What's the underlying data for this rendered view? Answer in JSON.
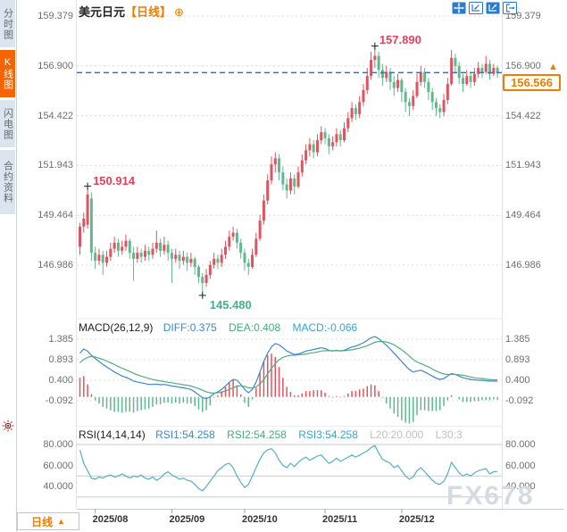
{
  "header": {
    "symbol": "美元日元",
    "period_bracket": "【日线】",
    "plus_icon_char": "⊕"
  },
  "sidebar": {
    "tabs": [
      {
        "label": "分时图",
        "active": false
      },
      {
        "label": "K线图",
        "active": true
      },
      {
        "label": "闪电图",
        "active": false
      },
      {
        "label": "合约资料",
        "active": false
      }
    ]
  },
  "axes": {
    "price_labels": [
      "159.379",
      "156.900",
      "154.422",
      "151.943",
      "149.464",
      "146.986"
    ],
    "macd_labels": [
      "1.385",
      "0.893",
      "0.400",
      "-0.092"
    ],
    "rsi_labels": [
      "80.000",
      "60.000",
      "40.000"
    ],
    "x_labels": [
      "2025/08",
      "2025/09",
      "2025/10",
      "2025/11",
      "2025/12"
    ]
  },
  "price_marker": {
    "value": "156.566",
    "arrow": "▲"
  },
  "annotations": {
    "high": {
      "value": "157.890"
    },
    "swing_high": {
      "value": "150.914"
    },
    "low": {
      "value": "145.480"
    }
  },
  "indicators": {
    "macd_header": {
      "name": "MACD(26,12,9)",
      "diff": "DIFF:0.375",
      "dea": "DEA:0.408",
      "macd": "MACD:-0.066"
    },
    "rsi_header": {
      "name": "RSI(14,14,14)",
      "rsi1": "RSI1:54.258",
      "rsi2": "RSI2:54.258",
      "rsi3": "RSI3:54.258",
      "l20": "L20:20.000",
      "l30": "L30:3"
    }
  },
  "period_button": {
    "label": "日线",
    "arrow": "▲"
  },
  "watermark": "FX678",
  "colors": {
    "up": "#e0535f",
    "down": "#5eb98e",
    "diff_line": "#3c86d2",
    "dea_line": "#53ab82",
    "rsi_line": "#55aecb",
    "accent_orange": "#f07d00",
    "price_line_blue": "#1e79d2",
    "annotation_red": "#e8405a",
    "annotation_green": "#3eb48e",
    "grid": "#dcdcdc",
    "rsi_grid": "#c6cad0",
    "axis_text": "#6e6e6e"
  },
  "chart_data": {
    "type": "candlestick",
    "title": "美元日元 日线 (USD/JPY daily)",
    "price_axis_ticks": [
      159.379,
      156.9,
      154.422,
      151.943,
      149.464,
      146.986
    ],
    "current_price": 156.566,
    "annotated_high": 157.89,
    "annotated_low": 145.48,
    "annotated_swing_high": 150.914,
    "annotation_anchor_indices": {
      "swing_high": 2,
      "low": 32,
      "high": 77
    },
    "x_tick_indices": [
      4,
      24,
      43,
      64,
      84
    ],
    "rsi_guide_levels": [
      80,
      50,
      30
    ],
    "macd_axis_ticks": [
      1.385,
      0.893,
      0.4,
      -0.092
    ],
    "rsi_axis_ticks": [
      80.0,
      60.0,
      40.0
    ],
    "candles": [
      [
        147.9,
        149.1,
        147.5,
        148.9
      ],
      [
        148.9,
        149.6,
        148.6,
        149.3
      ],
      [
        149.0,
        150.914,
        148.8,
        150.5
      ],
      [
        150.3,
        150.6,
        147.2,
        147.6
      ],
      [
        147.6,
        147.9,
        146.8,
        147.2
      ],
      [
        147.2,
        147.8,
        147.0,
        147.5
      ],
      [
        147.5,
        147.7,
        146.5,
        147.1
      ],
      [
        147.1,
        147.7,
        146.9,
        147.4
      ],
      [
        147.4,
        148.1,
        147.2,
        147.8
      ],
      [
        147.8,
        148.4,
        147.6,
        148.1
      ],
      [
        148.1,
        148.3,
        147.4,
        147.7
      ],
      [
        147.7,
        148.2,
        147.5,
        147.9
      ],
      [
        147.9,
        148.5,
        147.7,
        148.2
      ],
      [
        148.2,
        148.3,
        147.3,
        147.6
      ],
      [
        147.6,
        147.9,
        146.2,
        147.3
      ],
      [
        147.3,
        147.9,
        147.1,
        147.6
      ],
      [
        147.6,
        147.8,
        147.1,
        147.4
      ],
      [
        147.4,
        148.0,
        147.2,
        147.7
      ],
      [
        147.7,
        147.9,
        147.2,
        147.5
      ],
      [
        147.5,
        148.1,
        147.3,
        147.8
      ],
      [
        147.8,
        148.7,
        147.6,
        148.1
      ],
      [
        148.1,
        148.3,
        147.4,
        147.7
      ],
      [
        147.7,
        148.4,
        147.5,
        148.0
      ],
      [
        148.0,
        148.2,
        147.2,
        147.6
      ],
      [
        147.6,
        147.8,
        146.1,
        147.3
      ],
      [
        147.3,
        147.8,
        147.1,
        147.5
      ],
      [
        147.5,
        147.7,
        146.8,
        147.2
      ],
      [
        147.2,
        147.7,
        147.0,
        147.4
      ],
      [
        147.4,
        147.6,
        146.7,
        147.1
      ],
      [
        147.1,
        147.6,
        146.9,
        147.3
      ],
      [
        147.3,
        147.4,
        146.5,
        146.9
      ],
      [
        146.9,
        147.0,
        146.1,
        146.4
      ],
      [
        146.4,
        146.6,
        145.48,
        146.1
      ],
      [
        146.1,
        146.8,
        145.9,
        146.5
      ],
      [
        146.5,
        147.2,
        146.3,
        147.0
      ],
      [
        147.0,
        147.6,
        146.8,
        147.3
      ],
      [
        147.3,
        147.5,
        146.8,
        147.1
      ],
      [
        147.1,
        147.8,
        146.9,
        147.5
      ],
      [
        147.5,
        148.2,
        147.3,
        147.9
      ],
      [
        147.9,
        148.7,
        147.7,
        148.4
      ],
      [
        148.4,
        148.9,
        148.2,
        148.6
      ],
      [
        148.6,
        148.8,
        147.8,
        148.1
      ],
      [
        148.1,
        148.3,
        147.3,
        147.6
      ],
      [
        147.6,
        147.8,
        146.7,
        147.1
      ],
      [
        147.1,
        147.3,
        146.5,
        146.9
      ],
      [
        146.9,
        147.8,
        146.8,
        147.5
      ],
      [
        147.5,
        148.6,
        147.4,
        148.3
      ],
      [
        148.3,
        149.5,
        148.2,
        149.2
      ],
      [
        149.2,
        150.5,
        149.0,
        150.2
      ],
      [
        150.2,
        151.5,
        150.0,
        151.2
      ],
      [
        151.2,
        152.4,
        151.0,
        152.0
      ],
      [
        152.0,
        152.6,
        151.6,
        152.3
      ],
      [
        152.3,
        152.5,
        151.2,
        151.6
      ],
      [
        151.6,
        151.9,
        150.7,
        151.0
      ],
      [
        151.0,
        151.3,
        150.3,
        150.7
      ],
      [
        150.7,
        151.6,
        150.5,
        151.3
      ],
      [
        151.3,
        151.5,
        150.5,
        150.9
      ],
      [
        150.9,
        151.9,
        150.8,
        151.6
      ],
      [
        151.6,
        152.5,
        151.4,
        152.2
      ],
      [
        152.2,
        153.0,
        152.0,
        152.7
      ],
      [
        152.7,
        153.3,
        152.4,
        153.0
      ],
      [
        153.0,
        153.2,
        152.3,
        152.6
      ],
      [
        152.6,
        153.5,
        152.4,
        153.2
      ],
      [
        153.2,
        153.9,
        153.0,
        153.6
      ],
      [
        153.6,
        153.8,
        153.0,
        153.3
      ],
      [
        153.3,
        153.5,
        152.5,
        152.9
      ],
      [
        152.9,
        153.4,
        152.7,
        153.1
      ],
      [
        153.1,
        153.8,
        152.9,
        153.5
      ],
      [
        153.5,
        153.7,
        152.9,
        153.2
      ],
      [
        153.2,
        154.1,
        153.1,
        153.8
      ],
      [
        153.8,
        154.6,
        153.6,
        154.3
      ],
      [
        154.3,
        155.1,
        154.1,
        154.8
      ],
      [
        154.8,
        155.0,
        154.2,
        154.5
      ],
      [
        154.5,
        155.4,
        154.3,
        155.1
      ],
      [
        155.1,
        156.0,
        154.9,
        155.7
      ],
      [
        155.7,
        156.8,
        155.5,
        156.4
      ],
      [
        156.4,
        157.6,
        156.2,
        157.2
      ],
      [
        157.2,
        157.89,
        156.8,
        157.4
      ],
      [
        157.4,
        157.6,
        156.3,
        156.7
      ],
      [
        156.7,
        157.0,
        155.9,
        156.3
      ],
      [
        156.3,
        156.9,
        156.1,
        156.6
      ],
      [
        156.6,
        156.8,
        155.7,
        156.1
      ],
      [
        156.1,
        156.4,
        155.4,
        155.8
      ],
      [
        155.8,
        156.5,
        155.6,
        156.2
      ],
      [
        156.2,
        156.3,
        155.1,
        155.6
      ],
      [
        155.6,
        155.8,
        154.6,
        155.1
      ],
      [
        155.1,
        155.3,
        154.4,
        154.9
      ],
      [
        154.9,
        155.7,
        154.7,
        155.4
      ],
      [
        155.4,
        156.5,
        155.3,
        156.1
      ],
      [
        156.1,
        156.9,
        155.9,
        156.6
      ],
      [
        156.6,
        156.8,
        155.8,
        156.1
      ],
      [
        156.1,
        156.3,
        155.2,
        155.6
      ],
      [
        155.6,
        155.8,
        154.7,
        155.1
      ],
      [
        155.1,
        155.3,
        154.4,
        154.8
      ],
      [
        154.8,
        155.0,
        154.3,
        154.6
      ],
      [
        154.6,
        155.5,
        154.4,
        155.2
      ],
      [
        155.2,
        156.3,
        155.0,
        156.0
      ],
      [
        156.0,
        157.7,
        155.9,
        157.3
      ],
      [
        157.3,
        157.5,
        156.5,
        156.9
      ],
      [
        156.9,
        157.1,
        156.0,
        156.3
      ],
      [
        156.3,
        156.5,
        155.6,
        156.0
      ],
      [
        156.0,
        156.7,
        155.9,
        156.4
      ],
      [
        156.4,
        156.6,
        155.8,
        156.1
      ],
      [
        156.1,
        156.8,
        155.9,
        156.5
      ],
      [
        156.5,
        157.1,
        156.3,
        156.8
      ],
      [
        156.8,
        157.0,
        156.3,
        156.6
      ],
      [
        156.6,
        157.4,
        156.5,
        157.0
      ],
      [
        157.0,
        157.2,
        156.2,
        156.5
      ],
      [
        156.5,
        157.0,
        156.4,
        156.8
      ],
      [
        156.8,
        156.9,
        156.3,
        156.566
      ]
    ],
    "macd": {
      "diff": [
        1.05,
        1.15,
        1.1,
        1.0,
        0.92,
        0.85,
        0.78,
        0.72,
        0.66,
        0.6,
        0.55,
        0.5,
        0.47,
        0.43,
        0.38,
        0.36,
        0.34,
        0.32,
        0.3,
        0.3,
        0.31,
        0.29,
        0.3,
        0.28,
        0.26,
        0.25,
        0.23,
        0.22,
        0.2,
        0.18,
        0.12,
        0.05,
        -0.02,
        -0.04,
        0.0,
        0.08,
        0.12,
        0.18,
        0.26,
        0.35,
        0.42,
        0.4,
        0.3,
        0.18,
        0.1,
        0.18,
        0.35,
        0.6,
        0.85,
        1.05,
        1.2,
        1.28,
        1.25,
        1.18,
        1.1,
        1.06,
        1.02,
        1.03,
        1.06,
        1.1,
        1.12,
        1.14,
        1.16,
        1.18,
        1.16,
        1.12,
        1.1,
        1.12,
        1.1,
        1.12,
        1.16,
        1.2,
        1.22,
        1.26,
        1.3,
        1.36,
        1.42,
        1.45,
        1.4,
        1.32,
        1.24,
        1.15,
        1.05,
        0.95,
        0.85,
        0.75,
        0.66,
        0.6,
        0.62,
        0.64,
        0.6,
        0.55,
        0.5,
        0.45,
        0.42,
        0.44,
        0.5,
        0.56,
        0.54,
        0.5,
        0.46,
        0.44,
        0.42,
        0.41,
        0.4,
        0.4,
        0.39,
        0.38,
        0.38,
        0.375
      ],
      "dea": [
        0.82,
        0.9,
        0.95,
        0.97,
        0.96,
        0.93,
        0.9,
        0.86,
        0.82,
        0.78,
        0.73,
        0.69,
        0.65,
        0.61,
        0.57,
        0.53,
        0.5,
        0.47,
        0.44,
        0.42,
        0.4,
        0.38,
        0.37,
        0.35,
        0.34,
        0.32,
        0.31,
        0.29,
        0.28,
        0.26,
        0.23,
        0.2,
        0.16,
        0.12,
        0.1,
        0.09,
        0.1,
        0.11,
        0.14,
        0.18,
        0.22,
        0.26,
        0.27,
        0.25,
        0.22,
        0.21,
        0.24,
        0.31,
        0.42,
        0.55,
        0.68,
        0.8,
        0.89,
        0.95,
        0.98,
        1.0,
        1.0,
        1.01,
        1.02,
        1.03,
        1.05,
        1.06,
        1.08,
        1.1,
        1.11,
        1.11,
        1.11,
        1.11,
        1.11,
        1.11,
        1.12,
        1.13,
        1.15,
        1.17,
        1.2,
        1.23,
        1.27,
        1.31,
        1.33,
        1.33,
        1.32,
        1.29,
        1.25,
        1.19,
        1.13,
        1.06,
        0.98,
        0.9,
        0.84,
        0.8,
        0.76,
        0.72,
        0.67,
        0.62,
        0.58,
        0.55,
        0.54,
        0.54,
        0.54,
        0.53,
        0.52,
        0.5,
        0.48,
        0.46,
        0.45,
        0.44,
        0.43,
        0.42,
        0.41,
        0.408
      ],
      "hist": [
        0.46,
        0.5,
        0.3,
        0.06,
        -0.08,
        -0.16,
        -0.24,
        -0.28,
        -0.32,
        -0.36,
        -0.36,
        -0.38,
        -0.36,
        -0.36,
        -0.38,
        -0.34,
        -0.32,
        -0.3,
        -0.28,
        -0.24,
        -0.18,
        -0.18,
        -0.14,
        -0.14,
        -0.16,
        -0.14,
        -0.16,
        -0.14,
        -0.16,
        -0.16,
        -0.22,
        -0.3,
        -0.36,
        -0.32,
        -0.2,
        -0.02,
        0.04,
        0.14,
        0.24,
        0.34,
        0.4,
        0.28,
        0.06,
        -0.14,
        -0.24,
        -0.06,
        0.22,
        0.58,
        0.86,
        1.0,
        1.04,
        0.96,
        0.72,
        0.46,
        0.24,
        0.12,
        0.04,
        0.04,
        0.08,
        0.14,
        0.14,
        0.16,
        0.16,
        0.16,
        0.1,
        0.02,
        -0.02,
        0.02,
        -0.02,
        0.02,
        0.08,
        0.14,
        0.14,
        0.18,
        0.2,
        0.26,
        0.3,
        0.28,
        0.14,
        -0.02,
        -0.16,
        -0.28,
        -0.4,
        -0.48,
        -0.56,
        -0.62,
        -0.64,
        -0.6,
        -0.44,
        -0.32,
        -0.32,
        -0.34,
        -0.34,
        -0.34,
        -0.32,
        -0.22,
        -0.08,
        0.04,
        0.0,
        -0.06,
        -0.12,
        -0.12,
        -0.12,
        -0.1,
        -0.1,
        -0.08,
        -0.08,
        -0.08,
        -0.06,
        -0.066
      ]
    },
    "rsi": [
      75,
      62,
      55,
      48,
      47,
      49,
      48,
      50,
      51,
      49,
      50,
      52,
      50,
      48,
      50,
      49,
      51,
      48,
      47,
      49,
      46,
      48,
      52,
      54,
      51,
      49,
      47,
      48,
      46,
      45,
      42,
      38,
      36,
      40,
      45,
      50,
      55,
      58,
      61,
      62,
      58,
      50,
      44,
      39,
      42,
      50,
      58,
      66,
      72,
      75,
      76,
      72,
      65,
      60,
      58,
      62,
      59,
      63,
      66,
      68,
      65,
      67,
      69,
      70,
      66,
      62,
      64,
      67,
      64,
      66,
      68,
      70,
      68,
      70,
      72,
      74,
      77,
      79,
      72,
      66,
      64,
      62,
      58,
      60,
      55,
      50,
      47,
      49,
      55,
      58,
      54,
      50,
      46,
      43,
      42,
      45,
      52,
      63,
      58,
      53,
      50,
      52,
      50,
      53,
      55,
      56,
      57,
      52,
      54,
      54.258
    ]
  }
}
